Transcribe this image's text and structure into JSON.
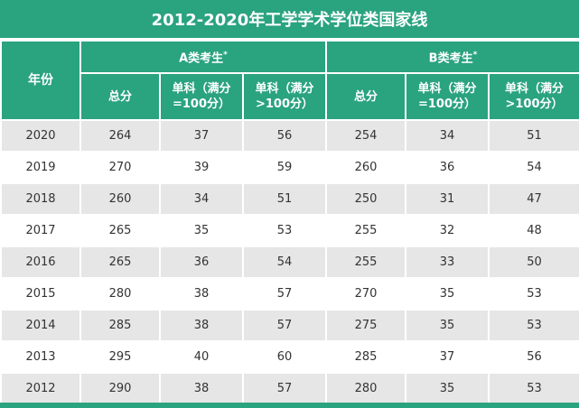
{
  "title": "2012-2020年工学学术学位类国家线",
  "headers": {
    "year": "年份",
    "group_a": "A类考生",
    "group_b": "B类考生",
    "group_mark": "*",
    "total": "总分",
    "single_eq100": "单科（满分=100分）",
    "single_gt100": "单科（满分>100分）"
  },
  "rows": [
    {
      "year": "2020",
      "a_total": "264",
      "a_s1": "37",
      "a_s2": "56",
      "b_total": "254",
      "b_s1": "34",
      "b_s2": "51"
    },
    {
      "year": "2019",
      "a_total": "270",
      "a_s1": "39",
      "a_s2": "59",
      "b_total": "260",
      "b_s1": "36",
      "b_s2": "54"
    },
    {
      "year": "2018",
      "a_total": "260",
      "a_s1": "34",
      "a_s2": "51",
      "b_total": "250",
      "b_s1": "31",
      "b_s2": "47"
    },
    {
      "year": "2017",
      "a_total": "265",
      "a_s1": "35",
      "a_s2": "53",
      "b_total": "255",
      "b_s1": "32",
      "b_s2": "48"
    },
    {
      "year": "2016",
      "a_total": "265",
      "a_s1": "36",
      "a_s2": "54",
      "b_total": "255",
      "b_s1": "33",
      "b_s2": "50"
    },
    {
      "year": "2015",
      "a_total": "280",
      "a_s1": "38",
      "a_s2": "57",
      "b_total": "270",
      "b_s1": "35",
      "b_s2": "53"
    },
    {
      "year": "2014",
      "a_total": "285",
      "a_s1": "38",
      "a_s2": "57",
      "b_total": "275",
      "b_s1": "35",
      "b_s2": "53"
    },
    {
      "year": "2013",
      "a_total": "295",
      "a_s1": "40",
      "a_s2": "60",
      "b_total": "285",
      "b_s1": "37",
      "b_s2": "56"
    },
    {
      "year": "2012",
      "a_total": "290",
      "a_s1": "38",
      "a_s2": "57",
      "b_total": "280",
      "b_s1": "35",
      "b_s2": "53"
    }
  ],
  "colors": {
    "header_green": "#2aa37f",
    "row_stripe": "#e6e6e6",
    "row_plain": "#ffffff"
  }
}
